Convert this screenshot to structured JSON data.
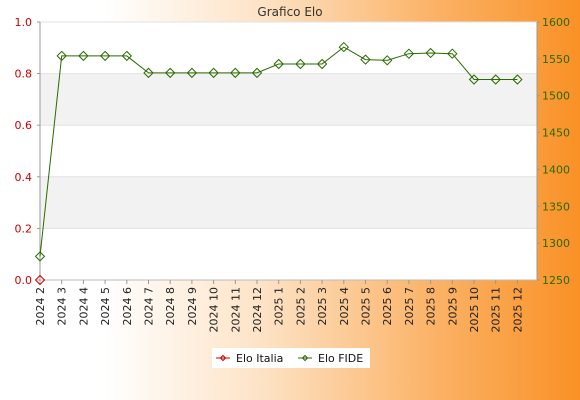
{
  "chart_data": {
    "type": "line",
    "title": "Grafico Elo",
    "categories": [
      "2024 2",
      "2024 3",
      "2024 4",
      "2024 5",
      "2024 6",
      "2024 7",
      "2024 8",
      "2024 9",
      "2024 10",
      "2024 11",
      "2024 12",
      "2025 1",
      "2025 2",
      "2025 3",
      "2025 4",
      "2025 5",
      "2025 6",
      "2025 7",
      "2025 8",
      "2025 9",
      "2025 10",
      "2025 11",
      "2025 12"
    ],
    "left_axis": {
      "ylim": [
        0,
        1.0
      ],
      "ticks": [
        "0.0",
        "0.2",
        "0.4",
        "0.6",
        "0.8",
        "1.0"
      ],
      "color": "#cc0000"
    },
    "right_axis": {
      "ylim": [
        1250,
        1600
      ],
      "ticks": [
        "1250",
        "1300",
        "1350",
        "1400",
        "1450",
        "1500",
        "1550",
        "1600"
      ],
      "color": "#2a6a00"
    },
    "series": [
      {
        "name": "Elo Italia",
        "axis": "left",
        "color": "#cc0000",
        "values": [
          0,
          null,
          null,
          null,
          null,
          null,
          null,
          null,
          null,
          null,
          null,
          null,
          null,
          null,
          null,
          null,
          null,
          null,
          null,
          null,
          null,
          null,
          null
        ]
      },
      {
        "name": "Elo FIDE",
        "axis": "right",
        "color": "#2a6a00",
        "values": [
          1282,
          1554,
          1554,
          1554,
          1554,
          1531,
          1531,
          1531,
          1531,
          1531,
          1531,
          1543,
          1543,
          1543,
          1566,
          1549,
          1548,
          1557,
          1558,
          1557,
          1522,
          1522,
          1522
        ]
      }
    ],
    "grid": true,
    "legend_position": "bottom-center"
  }
}
